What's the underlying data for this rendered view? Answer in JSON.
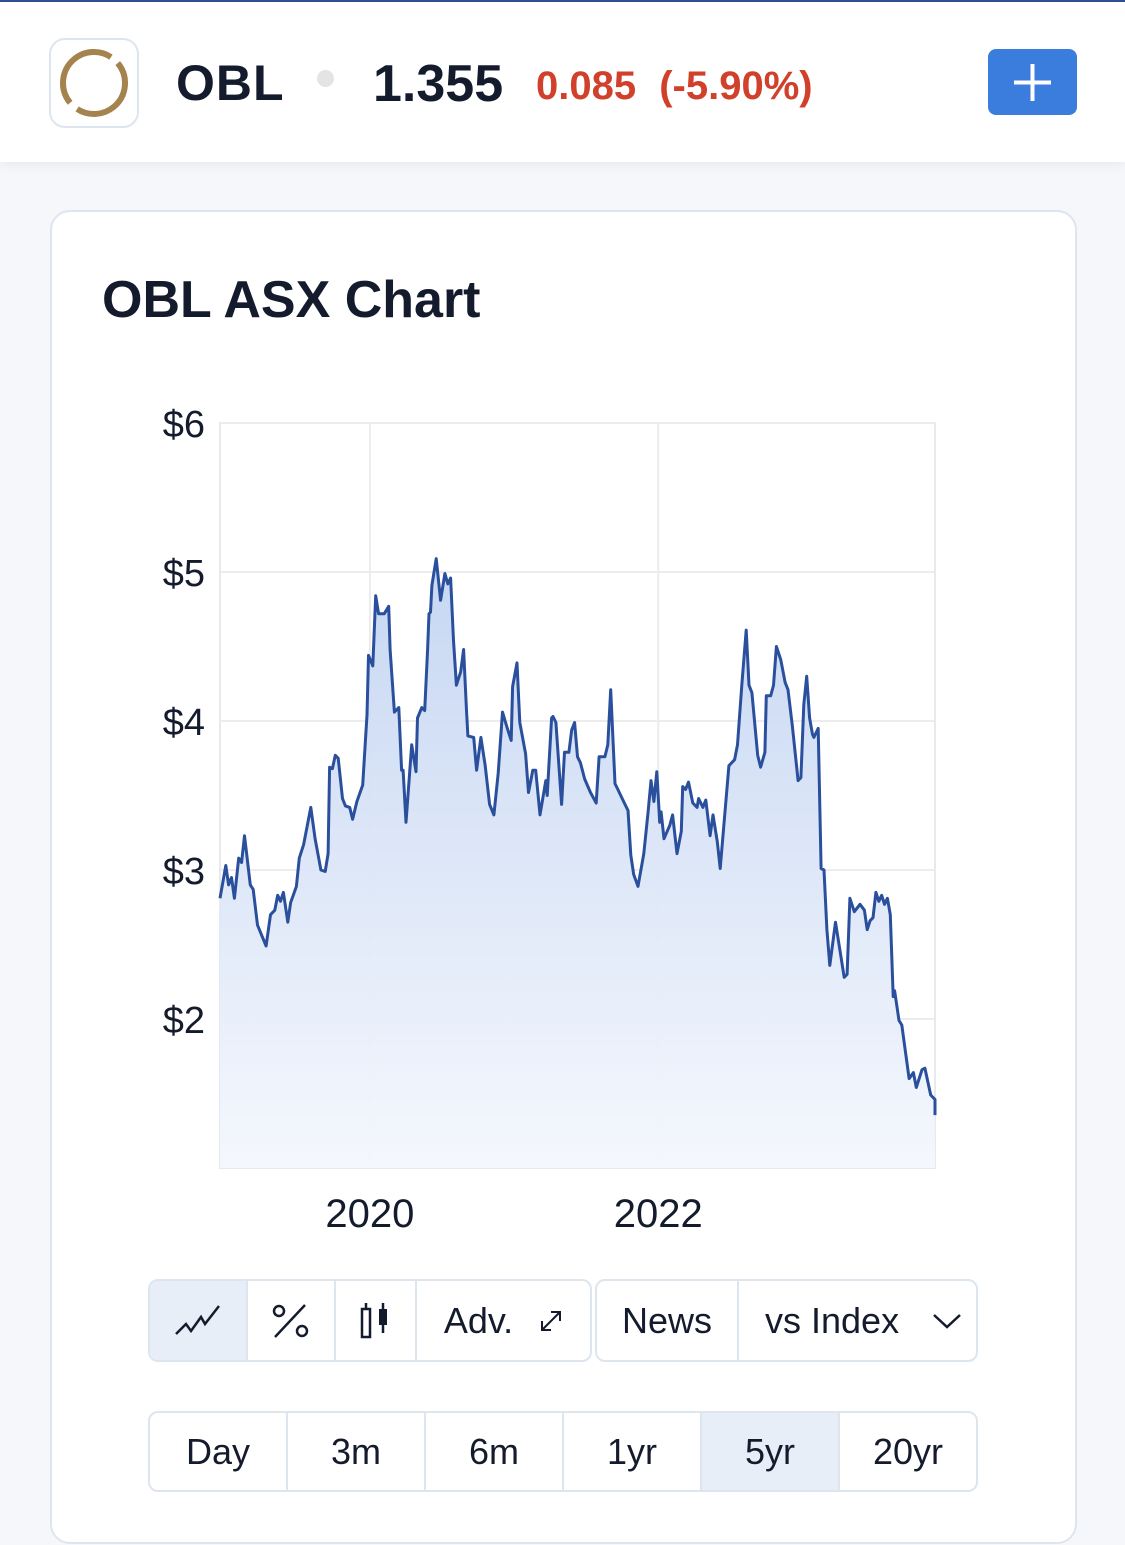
{
  "header": {
    "ticker": "OBL",
    "price": "1.355",
    "change": "0.085",
    "change_pct": "(-5.90%)",
    "change_color": "#d0402b",
    "add_icon": "plus-icon",
    "logo_icon": "ring-logo-icon"
  },
  "card": {
    "title": "OBL ASX Chart"
  },
  "toolbar": {
    "chart_types": [
      {
        "icon": "line-chart-icon",
        "active": true
      },
      {
        "icon": "percent-icon"
      },
      {
        "icon": "candlestick-icon"
      }
    ],
    "adv_label": "Adv.",
    "adv_icon": "expand-icon",
    "news_label": "News",
    "index_label": "vs Index",
    "index_icon": "chevron-down-icon"
  },
  "ranges": [
    {
      "label": "Day"
    },
    {
      "label": "3m"
    },
    {
      "label": "6m"
    },
    {
      "label": "1yr"
    },
    {
      "label": "5yr",
      "active": true
    },
    {
      "label": "20yr"
    }
  ],
  "chart_data": {
    "type": "area",
    "title": "OBL ASX Chart",
    "xlabel": "",
    "ylabel": "",
    "xlim": [
      2018.96,
      2023.92
    ],
    "ylim": [
      1,
      6
    ],
    "y_ticks": [
      2,
      3,
      4,
      5,
      6
    ],
    "y_tick_labels": [
      "$2",
      "$3",
      "$4",
      "$5",
      "$6"
    ],
    "x_ticks": [
      2020,
      2022
    ],
    "x_tick_labels": [
      "2020",
      "2022"
    ],
    "grid": true,
    "line_color": "#2a4f9c",
    "fill_color": "#c4d5f2",
    "points": [
      [
        2018.96,
        2.81
      ],
      [
        2019.0,
        3.03
      ],
      [
        2019.02,
        2.9
      ],
      [
        2019.04,
        2.95
      ],
      [
        2019.06,
        2.81
      ],
      [
        2019.09,
        3.08
      ],
      [
        2019.11,
        3.05
      ],
      [
        2019.13,
        3.23
      ],
      [
        2019.17,
        2.9
      ],
      [
        2019.19,
        2.87
      ],
      [
        2019.22,
        2.63
      ],
      [
        2019.25,
        2.56
      ],
      [
        2019.28,
        2.49
      ],
      [
        2019.31,
        2.7
      ],
      [
        2019.34,
        2.73
      ],
      [
        2019.36,
        2.83
      ],
      [
        2019.38,
        2.79
      ],
      [
        2019.4,
        2.85
      ],
      [
        2019.43,
        2.65
      ],
      [
        2019.45,
        2.78
      ],
      [
        2019.49,
        2.89
      ],
      [
        2019.51,
        3.08
      ],
      [
        2019.54,
        3.17
      ],
      [
        2019.59,
        3.42
      ],
      [
        2019.62,
        3.21
      ],
      [
        2019.66,
        3.0
      ],
      [
        2019.69,
        2.99
      ],
      [
        2019.71,
        3.11
      ],
      [
        2019.72,
        3.69
      ],
      [
        2019.74,
        3.68
      ],
      [
        2019.76,
        3.77
      ],
      [
        2019.78,
        3.75
      ],
      [
        2019.81,
        3.48
      ],
      [
        2019.83,
        3.43
      ],
      [
        2019.86,
        3.42
      ],
      [
        2019.88,
        3.34
      ],
      [
        2019.91,
        3.46
      ],
      [
        2019.95,
        3.57
      ],
      [
        2019.98,
        4.04
      ],
      [
        2019.99,
        4.44
      ],
      [
        2020.02,
        4.37
      ],
      [
        2020.04,
        4.84
      ],
      [
        2020.06,
        4.72
      ],
      [
        2020.1,
        4.72
      ],
      [
        2020.13,
        4.77
      ],
      [
        2020.14,
        4.48
      ],
      [
        2020.17,
        4.06
      ],
      [
        2020.2,
        4.09
      ],
      [
        2020.22,
        3.67
      ],
      [
        2020.23,
        3.67
      ],
      [
        2020.25,
        3.32
      ],
      [
        2020.29,
        3.84
      ],
      [
        2020.32,
        3.66
      ],
      [
        2020.33,
        4.02
      ],
      [
        2020.36,
        4.09
      ],
      [
        2020.38,
        4.07
      ],
      [
        2020.4,
        4.48
      ],
      [
        2020.41,
        4.72
      ],
      [
        2020.42,
        4.73
      ],
      [
        2020.43,
        4.91
      ],
      [
        2020.46,
        5.09
      ],
      [
        2020.49,
        4.81
      ],
      [
        2020.52,
        4.99
      ],
      [
        2020.54,
        4.92
      ],
      [
        2020.56,
        4.96
      ],
      [
        2020.58,
        4.54
      ],
      [
        2020.6,
        4.24
      ],
      [
        2020.63,
        4.33
      ],
      [
        2020.65,
        4.48
      ],
      [
        2020.67,
        4.07
      ],
      [
        2020.68,
        3.9
      ],
      [
        2020.72,
        3.89
      ],
      [
        2020.74,
        3.67
      ],
      [
        2020.77,
        3.89
      ],
      [
        2020.8,
        3.7
      ],
      [
        2020.83,
        3.44
      ],
      [
        2020.86,
        3.37
      ],
      [
        2020.89,
        3.65
      ],
      [
        2020.92,
        4.06
      ],
      [
        2020.95,
        3.96
      ],
      [
        2020.98,
        3.87
      ],
      [
        2020.99,
        4.23
      ],
      [
        2021.02,
        4.39
      ],
      [
        2021.04,
        3.99
      ],
      [
        2021.08,
        3.78
      ],
      [
        2021.1,
        3.52
      ],
      [
        2021.13,
        3.67
      ],
      [
        2021.15,
        3.67
      ],
      [
        2021.18,
        3.37
      ],
      [
        2021.22,
        3.6
      ],
      [
        2021.23,
        3.5
      ],
      [
        2021.26,
        4.02
      ],
      [
        2021.27,
        4.03
      ],
      [
        2021.29,
        3.99
      ],
      [
        2021.33,
        3.44
      ],
      [
        2021.35,
        3.79
      ],
      [
        2021.38,
        3.79
      ],
      [
        2021.4,
        3.94
      ],
      [
        2021.42,
        3.99
      ],
      [
        2021.44,
        3.76
      ],
      [
        2021.46,
        3.72
      ],
      [
        2021.49,
        3.61
      ],
      [
        2021.53,
        3.52
      ],
      [
        2021.57,
        3.45
      ],
      [
        2021.59,
        3.76
      ],
      [
        2021.63,
        3.76
      ],
      [
        2021.65,
        3.84
      ],
      [
        2021.67,
        4.21
      ],
      [
        2021.7,
        3.58
      ],
      [
        2021.72,
        3.54
      ],
      [
        2021.76,
        3.46
      ],
      [
        2021.79,
        3.4
      ],
      [
        2021.81,
        3.1
      ],
      [
        2021.83,
        2.97
      ],
      [
        2021.86,
        2.89
      ],
      [
        2021.88,
        3.0
      ],
      [
        2021.9,
        3.11
      ],
      [
        2021.93,
        3.39
      ],
      [
        2021.95,
        3.6
      ],
      [
        2021.97,
        3.46
      ],
      [
        2021.99,
        3.66
      ],
      [
        2022.01,
        3.32
      ],
      [
        2022.02,
        3.39
      ],
      [
        2022.04,
        3.21
      ],
      [
        2022.08,
        3.3
      ],
      [
        2022.1,
        3.37
      ],
      [
        2022.13,
        3.11
      ],
      [
        2022.16,
        3.26
      ],
      [
        2022.17,
        3.56
      ],
      [
        2022.19,
        3.54
      ],
      [
        2022.21,
        3.59
      ],
      [
        2022.24,
        3.45
      ],
      [
        2022.27,
        3.42
      ],
      [
        2022.28,
        3.48
      ],
      [
        2022.31,
        3.42
      ],
      [
        2022.33,
        3.47
      ],
      [
        2022.36,
        3.23
      ],
      [
        2022.38,
        3.37
      ],
      [
        2022.41,
        3.19
      ],
      [
        2022.43,
        3.01
      ],
      [
        2022.49,
        3.7
      ],
      [
        2022.53,
        3.74
      ],
      [
        2022.55,
        3.84
      ],
      [
        2022.58,
        4.24
      ],
      [
        2022.61,
        4.61
      ],
      [
        2022.63,
        4.24
      ],
      [
        2022.65,
        4.19
      ],
      [
        2022.69,
        3.77
      ],
      [
        2022.71,
        3.69
      ],
      [
        2022.74,
        3.79
      ],
      [
        2022.75,
        4.17
      ],
      [
        2022.78,
        4.17
      ],
      [
        2022.8,
        4.24
      ],
      [
        2022.82,
        4.5
      ],
      [
        2022.85,
        4.41
      ],
      [
        2022.88,
        4.26
      ],
      [
        2022.9,
        4.21
      ],
      [
        2022.93,
        3.97
      ],
      [
        2022.97,
        3.6
      ],
      [
        2022.99,
        3.62
      ],
      [
        2023.01,
        4.11
      ],
      [
        2023.03,
        4.3
      ],
      [
        2023.05,
        4.02
      ],
      [
        2023.07,
        3.91
      ],
      [
        2023.08,
        3.89
      ],
      [
        2023.11,
        3.95
      ],
      [
        2023.13,
        3.01
      ],
      [
        2023.15,
        3.0
      ],
      [
        2023.17,
        2.6
      ],
      [
        2023.19,
        2.36
      ],
      [
        2023.23,
        2.65
      ],
      [
        2023.29,
        2.28
      ],
      [
        2023.31,
        2.3
      ],
      [
        2023.33,
        2.81
      ],
      [
        2023.36,
        2.72
      ],
      [
        2023.4,
        2.77
      ],
      [
        2023.43,
        2.73
      ],
      [
        2023.45,
        2.6
      ],
      [
        2023.47,
        2.66
      ],
      [
        2023.49,
        2.68
      ],
      [
        2023.51,
        2.85
      ],
      [
        2023.53,
        2.79
      ],
      [
        2023.55,
        2.83
      ],
      [
        2023.57,
        2.77
      ],
      [
        2023.59,
        2.81
      ],
      [
        2023.61,
        2.7
      ],
      [
        2023.63,
        2.15
      ],
      [
        2023.64,
        2.19
      ],
      [
        2023.67,
        1.99
      ],
      [
        2023.69,
        1.96
      ],
      [
        2023.74,
        1.6
      ],
      [
        2023.77,
        1.64
      ],
      [
        2023.79,
        1.54
      ],
      [
        2023.83,
        1.66
      ],
      [
        2023.85,
        1.67
      ],
      [
        2023.89,
        1.49
      ],
      [
        2023.92,
        1.46
      ],
      [
        2023.92,
        1.355
      ]
    ]
  }
}
